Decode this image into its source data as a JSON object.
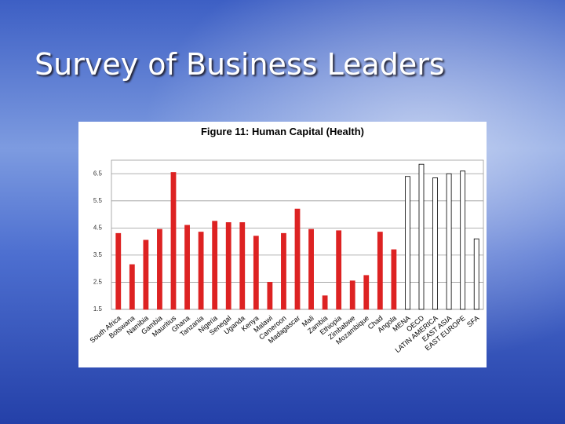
{
  "header": {
    "title": "Survey of Business Leaders"
  },
  "chart_data": {
    "type": "bar",
    "title": "Figure 11: Human Capital (Health)",
    "categories": [
      "South Africa",
      "Botswana",
      "Namibia",
      "Gambia",
      "Mauritius",
      "Ghana",
      "Tanzania",
      "Nigeria",
      "Senegal",
      "Uganda",
      "Kenya",
      "Malawi",
      "Cameroon",
      "Madagascar",
      "Mali",
      "Zambia",
      "Ethiopia",
      "Zimbabwe",
      "Mozambique",
      "Chad",
      "Angola",
      "MENA",
      "OECD",
      "LATIN AMERICA",
      "EAST ASIA",
      "EAST EUROPE",
      "SFA"
    ],
    "values": [
      4.3,
      3.15,
      4.05,
      4.45,
      6.55,
      4.6,
      4.35,
      4.75,
      4.7,
      4.7,
      4.2,
      2.5,
      4.3,
      5.2,
      4.45,
      2.0,
      4.4,
      2.55,
      2.75,
      4.35,
      3.7,
      6.4,
      6.85,
      6.35,
      6.5,
      6.6,
      4.1
    ],
    "colors": [
      "#dd2222",
      "#dd2222",
      "#dd2222",
      "#dd2222",
      "#dd2222",
      "#dd2222",
      "#dd2222",
      "#dd2222",
      "#dd2222",
      "#dd2222",
      "#dd2222",
      "#dd2222",
      "#dd2222",
      "#dd2222",
      "#dd2222",
      "#dd2222",
      "#dd2222",
      "#dd2222",
      "#dd2222",
      "#dd2222",
      "#dd2222",
      "#ffffff",
      "#ffffff",
      "#ffffff",
      "#ffffff",
      "#ffffff",
      "#ffffff"
    ],
    "ylim": [
      1.5,
      7
    ],
    "yticks": [
      1.5,
      2.5,
      3.5,
      4.5,
      5.5,
      6.5
    ],
    "grid": true
  }
}
